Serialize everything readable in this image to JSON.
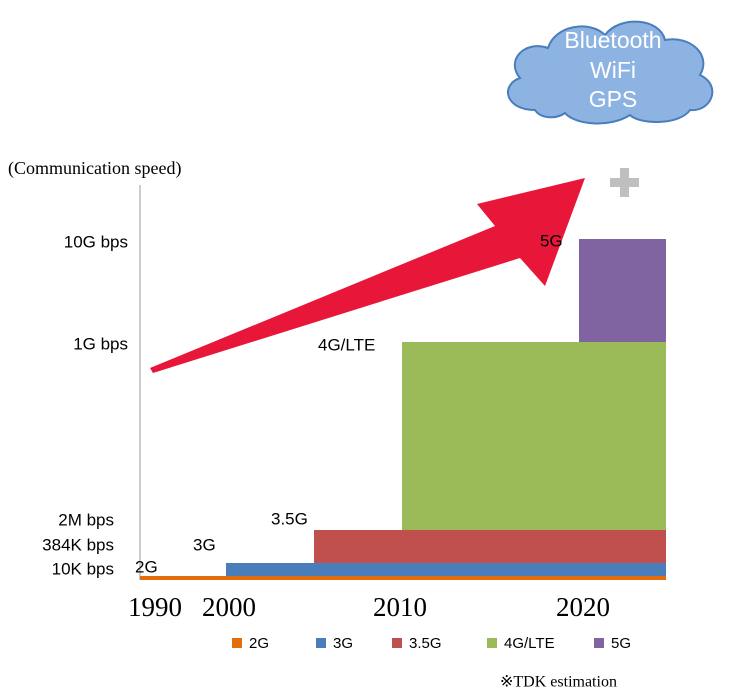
{
  "cloud": {
    "lines": [
      "Bluetooth",
      "WiFi",
      "GPS"
    ]
  },
  "axis_title": "(Communication speed)",
  "y_labels": [
    "10G bps",
    "1G bps",
    "2M bps",
    "384K bps",
    "10K bps"
  ],
  "x_labels": [
    "1990",
    "2000",
    "2010",
    "2020"
  ],
  "bars": [
    {
      "label": "2G",
      "color": "#e46c0a"
    },
    {
      "label": "3G",
      "color": "#4a7ebb"
    },
    {
      "label": "3.5G",
      "color": "#c0504d"
    },
    {
      "label": "4G/LTE",
      "color": "#9bbb59"
    },
    {
      "label": "5G",
      "color": "#8064a2"
    }
  ],
  "legend": [
    "2G",
    "3G",
    "3.5G",
    "4G/LTE",
    "5G"
  ],
  "note": "※TDK estimation"
}
